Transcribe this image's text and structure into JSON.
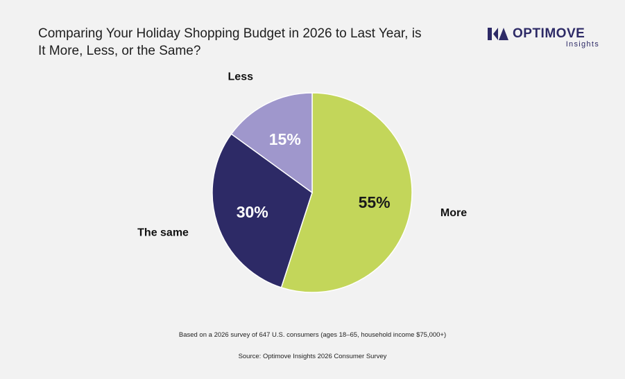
{
  "header": {
    "title": "Comparing Your Holiday Shopping Budget in 2026 to Last Year, is It More, Less, or the Same?"
  },
  "logo": {
    "brand": "OPTIMOVE",
    "sub": "Insights",
    "color": "#2d2a66",
    "icon": "optimove-logo-icon"
  },
  "chart_data": {
    "type": "pie",
    "title": "Comparing Your Holiday Shopping Budget in 2026 to Last Year, is It More, Less, or the Same?",
    "slices": [
      {
        "label": "More",
        "value": 55,
        "display": "55%",
        "color": "#c3d65a",
        "text_color": "#1a1a1a"
      },
      {
        "label": "The same",
        "value": 30,
        "display": "30%",
        "color": "#2d2a66",
        "text_color": "#ffffff"
      },
      {
        "label": "Less",
        "value": 15,
        "display": "15%",
        "color": "#9f97cc",
        "text_color": "#ffffff"
      }
    ]
  },
  "footer": {
    "note": "Based on a 2026 survey of 647 U.S. consumers (ages 18–65, household income $75,000+)",
    "source": "Source: Optimove Insights 2026 Consumer Survey"
  }
}
